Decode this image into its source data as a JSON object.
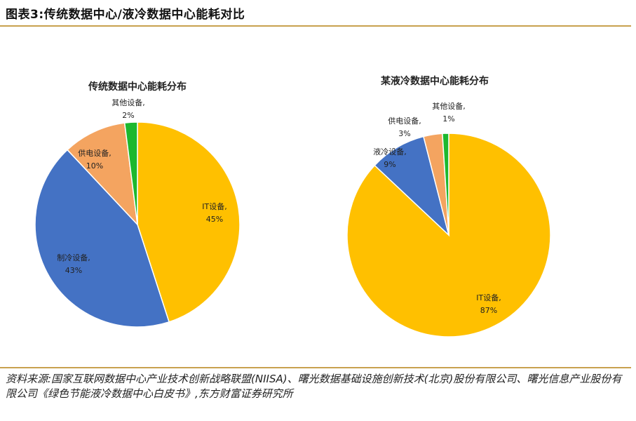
{
  "header": {
    "title": "图表3:传统数据中心/液冷数据中心能耗对比"
  },
  "chart_data": [
    {
      "type": "pie",
      "title": "传统数据中心能耗分布",
      "slices": [
        {
          "label": "IT设备,",
          "value": 45,
          "pct": "45%",
          "color": "#FFC000"
        },
        {
          "label": "制冷设备,",
          "value": 43,
          "pct": "43%",
          "color": "#4472C4"
        },
        {
          "label": "供电设备,",
          "value": 10,
          "pct": "10%",
          "color": "#F4A460"
        },
        {
          "label": "其他设备,",
          "value": 2,
          "pct": "2%",
          "color": "#1DB82E"
        }
      ]
    },
    {
      "type": "pie",
      "title": "某液冷数据中心能耗分布",
      "slices": [
        {
          "label": "IT设备,",
          "value": 87,
          "pct": "87%",
          "color": "#FFC000"
        },
        {
          "label": "液冷设备,",
          "value": 9,
          "pct": "9%",
          "color": "#4472C4"
        },
        {
          "label": "供电设备,",
          "value": 3,
          "pct": "3%",
          "color": "#F4A460"
        },
        {
          "label": "其他设备,",
          "value": 1,
          "pct": "1%",
          "color": "#1DB82E"
        }
      ]
    }
  ],
  "source": {
    "text": "资料来源:国家互联网数据中心产业技术创新战略联盟(NIISA)、曙光数据基础设施创新技术(北京)股份有限公司、曙光信息产业股份有限公司《绿色节能液冷数据中心白皮书》,东方财富证券研究所"
  }
}
